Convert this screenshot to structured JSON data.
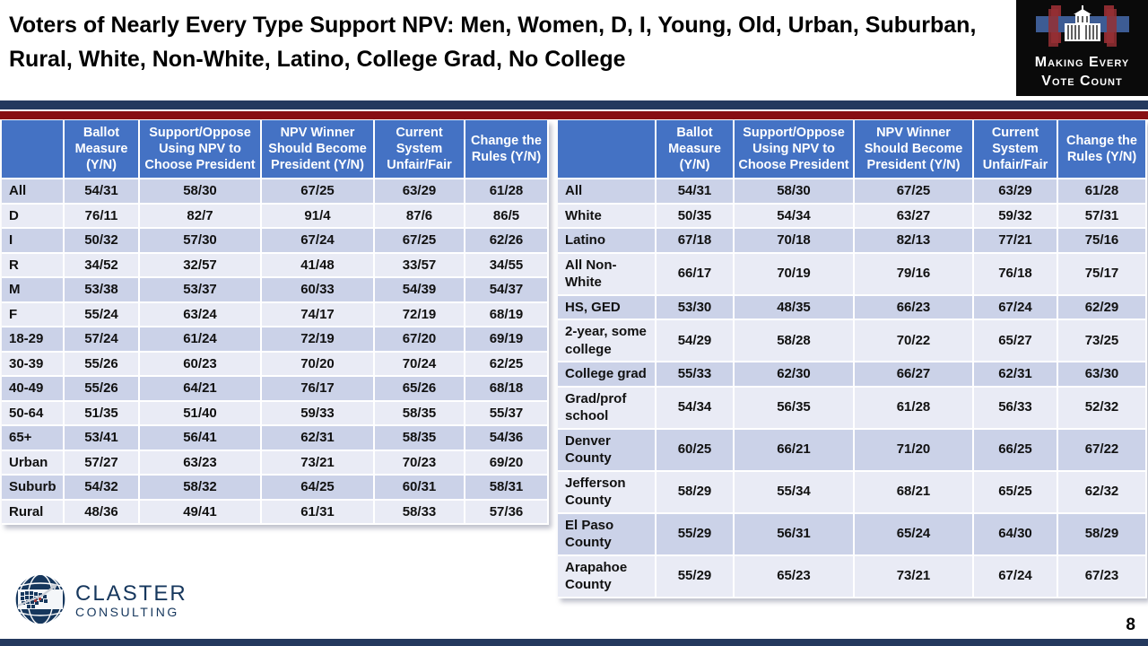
{
  "slide": {
    "title": "Voters of Nearly Every Type Support NPV: Men, Women, D, I, Young, Old, Urban, Suburban, Rural, White, Non-White, Latino, College Grad, No College",
    "page_number": "8"
  },
  "logo_mevc": {
    "line1": "Making Every",
    "line2": "Vote Count",
    "icon": "white-house-icon"
  },
  "logo_claster": {
    "name": "CLASTER",
    "sub": "CONSULTING",
    "icon": "globe-icon"
  },
  "colors": {
    "header_blue": "#4472c4",
    "band_dark": "#cbd2e8",
    "band_light": "#e9ebf5",
    "bar_navy": "#24395e",
    "bar_red": "#870e12",
    "mevc_background": "#0a0a0a",
    "mevc_band_blue": "#3d5c94",
    "mevc_pillar_red": "#8c2b30",
    "claster_navy": "#16375d"
  },
  "columns": [
    "",
    "Ballot Measure (Y/N)",
    "Support/Oppose Using NPV to Choose President",
    "NPV Winner Should Become President (Y/N)",
    "Current System Unfair/Fair",
    "Change the Rules (Y/N)"
  ],
  "left_table": {
    "rows": [
      {
        "label": "All",
        "values": [
          "54/31",
          "58/30",
          "67/25",
          "63/29",
          "61/28"
        ]
      },
      {
        "label": "D",
        "values": [
          "76/11",
          "82/7",
          "91/4",
          "87/6",
          "86/5"
        ]
      },
      {
        "label": "I",
        "values": [
          "50/32",
          "57/30",
          "67/24",
          "67/25",
          "62/26"
        ]
      },
      {
        "label": "R",
        "values": [
          "34/52",
          "32/57",
          "41/48",
          "33/57",
          "34/55"
        ]
      },
      {
        "label": "M",
        "values": [
          "53/38",
          "53/37",
          "60/33",
          "54/39",
          "54/37"
        ]
      },
      {
        "label": "F",
        "values": [
          "55/24",
          "63/24",
          "74/17",
          "72/19",
          "68/19"
        ]
      },
      {
        "label": "18-29",
        "values": [
          "57/24",
          "61/24",
          "72/19",
          "67/20",
          "69/19"
        ]
      },
      {
        "label": "30-39",
        "values": [
          "55/26",
          "60/23",
          "70/20",
          "70/24",
          "62/25"
        ]
      },
      {
        "label": "40-49",
        "values": [
          "55/26",
          "64/21",
          "76/17",
          "65/26",
          "68/18"
        ]
      },
      {
        "label": "50-64",
        "values": [
          "51/35",
          "51/40",
          "59/33",
          "58/35",
          "55/37"
        ]
      },
      {
        "label": "65+",
        "values": [
          "53/41",
          "56/41",
          "62/31",
          "58/35",
          "54/36"
        ]
      },
      {
        "label": "Urban",
        "values": [
          "57/27",
          "63/23",
          "73/21",
          "70/23",
          "69/20"
        ]
      },
      {
        "label": "Suburb",
        "values": [
          "54/32",
          "58/32",
          "64/25",
          "60/31",
          "58/31"
        ]
      },
      {
        "label": "Rural",
        "values": [
          "48/36",
          "49/41",
          "61/31",
          "58/33",
          "57/36"
        ]
      }
    ]
  },
  "right_table": {
    "rows": [
      {
        "label": "All",
        "values": [
          "54/31",
          "58/30",
          "67/25",
          "63/29",
          "61/28"
        ]
      },
      {
        "label": "White",
        "values": [
          "50/35",
          "54/34",
          "63/27",
          "59/32",
          "57/31"
        ]
      },
      {
        "label": "Latino",
        "values": [
          "67/18",
          "70/18",
          "82/13",
          "77/21",
          "75/16"
        ]
      },
      {
        "label": "All Non-White",
        "values": [
          "66/17",
          "70/19",
          "79/16",
          "76/18",
          "75/17"
        ]
      },
      {
        "label": "HS, GED",
        "values": [
          "53/30",
          "48/35",
          "66/23",
          "67/24",
          "62/29"
        ]
      },
      {
        "label": "2-year, some college",
        "values": [
          "54/29",
          "58/28",
          "70/22",
          "65/27",
          "73/25"
        ]
      },
      {
        "label": "College grad",
        "values": [
          "55/33",
          "62/30",
          "66/27",
          "62/31",
          "63/30"
        ]
      },
      {
        "label": "Grad/prof school",
        "values": [
          "54/34",
          "56/35",
          "61/28",
          "56/33",
          "52/32"
        ]
      },
      {
        "label": "Denver County",
        "values": [
          "60/25",
          "66/21",
          "71/20",
          "66/25",
          "67/22"
        ]
      },
      {
        "label": "Jefferson County",
        "values": [
          "58/29",
          "55/34",
          "68/21",
          "65/25",
          "62/32"
        ]
      },
      {
        "label": "El Paso County",
        "values": [
          "55/29",
          "56/31",
          "65/24",
          "64/30",
          "58/29"
        ]
      },
      {
        "label": "Arapahoe County",
        "values": [
          "55/29",
          "65/23",
          "73/21",
          "67/24",
          "67/23"
        ]
      }
    ]
  }
}
